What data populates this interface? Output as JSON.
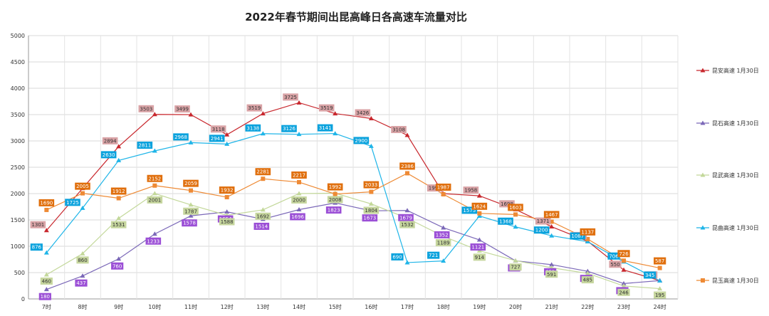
{
  "chart_data": {
    "type": "line",
    "title": "2022年春节期间出昆高峰日各高速车流量对比",
    "categories": [
      "7时",
      "8时",
      "9时",
      "10时",
      "11时",
      "12时",
      "13时",
      "14时",
      "15时",
      "16时",
      "17时",
      "18时",
      "19时",
      "20时",
      "21时",
      "22时",
      "23时",
      "24时"
    ],
    "ylim": [
      0,
      5000
    ],
    "yticks": [
      0,
      500,
      1000,
      1500,
      2000,
      2500,
      3000,
      3500,
      4000,
      4500,
      5000
    ],
    "grid": true,
    "legend_position": "right",
    "series": [
      {
        "name": "昆安高速 1月30日",
        "color": "#c8272d",
        "label_bg": "#d9a3a6",
        "label_fg": "#333333",
        "marker": "triangle",
        "values": [
          1301,
          2100,
          2894,
          3503,
          3499,
          3118,
          3519,
          3725,
          3519,
          3426,
          3108,
          1999,
          1958,
          1698,
          1371,
          1096,
          550,
          348
        ],
        "labels": [
          "1301",
          "",
          "2894",
          "3503",
          "3499",
          "3118",
          "3519",
          "3725",
          "3519",
          "3426",
          "3108",
          "1999",
          "1958",
          "1698",
          "1371",
          "1096",
          "550",
          "348"
        ]
      },
      {
        "name": "昆石高速 1月30日",
        "color": "#7b68b8",
        "label_bg": "#9b4fd6",
        "label_fg": "#ffffff",
        "marker": "triangle",
        "values": [
          180,
          437,
          760,
          1233,
          1578,
          1654,
          1514,
          1696,
          1823,
          1673,
          1679,
          1352,
          1121,
          724,
          651,
          525,
          292,
          348
        ],
        "labels": [
          "180",
          "437",
          "760",
          "1233",
          "1578",
          "1654",
          "1514",
          "1696",
          "1823",
          "1673",
          "1679",
          "1352",
          "1121",
          "724",
          "651",
          "525",
          "292",
          ""
        ]
      },
      {
        "name": "昆武高速 1月30日",
        "color": "#c3d89a",
        "label_bg": "#c6d69e",
        "label_fg": "#333333",
        "marker": "triangle",
        "values": [
          460,
          860,
          1531,
          2001,
          1787,
          1588,
          1692,
          2000,
          2008,
          1804,
          1532,
          1189,
          914,
          727,
          591,
          485,
          246,
          195
        ],
        "labels": [
          "460",
          "860",
          "1531",
          "2001",
          "1787",
          "1588",
          "1692",
          "2000",
          "2008",
          "1804",
          "1532",
          "1189",
          "914",
          "727",
          "591",
          "485",
          "246",
          "195"
        ]
      },
      {
        "name": "昆曲高速 1月30日",
        "color": "#1fb5e8",
        "label_bg": "#0aa2dd",
        "label_fg": "#ffffff",
        "marker": "triangle",
        "values": [
          876,
          1725,
          2630,
          2811,
          2968,
          2941,
          3138,
          3126,
          3141,
          2900,
          690,
          721,
          1575,
          1368,
          1200,
          1087,
          706,
          345
        ],
        "labels": [
          "876",
          "1725",
          "2630",
          "2811",
          "2968",
          "2941",
          "3138",
          "3126",
          "3141",
          "2900",
          "690",
          "721",
          "1575",
          "1368",
          "1200",
          "1087",
          "706",
          "345"
        ]
      },
      {
        "name": "昆玉高速 1月30日",
        "color": "#ee8a35",
        "label_bg": "#e06f0d",
        "label_fg": "#ffffff",
        "marker": "square",
        "values": [
          1690,
          2005,
          1912,
          2152,
          2059,
          1932,
          2281,
          2217,
          1992,
          2033,
          2386,
          1987,
          1624,
          1603,
          1467,
          1137,
          726,
          587
        ],
        "labels": [
          "1690",
          "2005",
          "1912",
          "2152",
          "2059",
          "1932",
          "2281",
          "2217",
          "1992",
          "2033",
          "2386",
          "1987",
          "1624",
          "1603",
          "1467",
          "1137",
          "726",
          "587"
        ]
      }
    ]
  }
}
